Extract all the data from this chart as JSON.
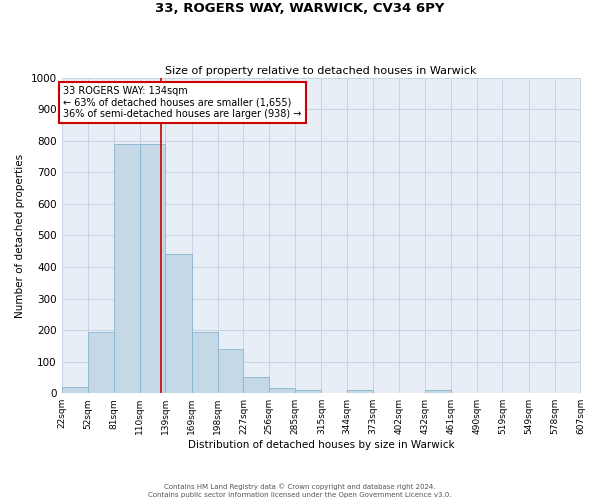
{
  "title_line1": "33, ROGERS WAY, WARWICK, CV34 6PY",
  "title_line2": "Size of property relative to detached houses in Warwick",
  "xlabel": "Distribution of detached houses by size in Warwick",
  "ylabel": "Number of detached properties",
  "bar_edges": [
    22,
    52,
    81,
    110,
    139,
    169,
    198,
    227,
    256,
    285,
    315,
    344,
    373,
    402,
    432,
    461,
    490,
    519,
    549,
    578,
    607
  ],
  "bar_heights": [
    20,
    195,
    790,
    790,
    440,
    195,
    140,
    50,
    15,
    10,
    0,
    10,
    0,
    0,
    10,
    0,
    0,
    0,
    0,
    0
  ],
  "bar_color": "#c5d8e8",
  "bar_edgecolor": "#8ab4d0",
  "property_line_x": 134,
  "annotation_title": "33 ROGERS WAY: 134sqm",
  "annotation_line1": "← 63% of detached houses are smaller (1,655)",
  "annotation_line2": "36% of semi-detached houses are larger (938) →",
  "annotation_box_facecolor": "#ffffff",
  "annotation_box_edgecolor": "#cc0000",
  "vline_color": "#cc0000",
  "ylim": [
    0,
    1000
  ],
  "yticks": [
    0,
    100,
    200,
    300,
    400,
    500,
    600,
    700,
    800,
    900,
    1000
  ],
  "tick_labels": [
    "22sqm",
    "52sqm",
    "81sqm",
    "110sqm",
    "139sqm",
    "169sqm",
    "198sqm",
    "227sqm",
    "256sqm",
    "285sqm",
    "315sqm",
    "344sqm",
    "373sqm",
    "402sqm",
    "432sqm",
    "461sqm",
    "490sqm",
    "519sqm",
    "549sqm",
    "578sqm",
    "607sqm"
  ],
  "grid_color": "#c8d4e4",
  "bg_color": "#e8eef6",
  "fig_bg_color": "#ffffff",
  "footer_line1": "Contains HM Land Registry data © Crown copyright and database right 2024.",
  "footer_line2": "Contains public sector information licensed under the Open Government Licence v3.0."
}
